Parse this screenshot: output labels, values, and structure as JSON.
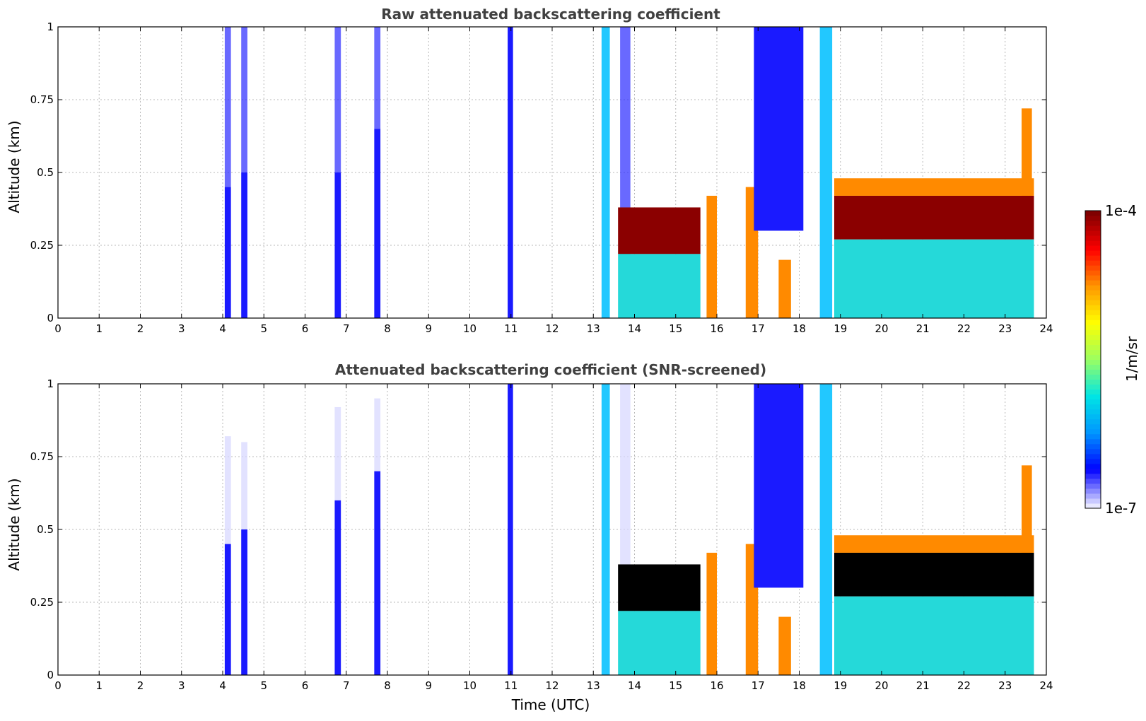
{
  "chart_data": [
    {
      "type": "heatmap",
      "title": "Raw attenuated backscattering coefficient",
      "xlabel": "",
      "ylabel": "Altitude (km)",
      "xlim": [
        0,
        24
      ],
      "ylim": [
        0,
        1
      ],
      "xticks": [
        "0",
        "1",
        "2",
        "3",
        "4",
        "5",
        "6",
        "7",
        "8",
        "9",
        "10",
        "11",
        "12",
        "13",
        "14",
        "15",
        "16",
        "17",
        "18",
        "19",
        "20",
        "21",
        "22",
        "23",
        "24"
      ],
      "yticks": [
        "0",
        "0.25",
        "0.5",
        "0.75",
        "1"
      ],
      "grid": true,
      "screened": false,
      "layers": [
        {
          "t0": 4.05,
          "t1": 4.2,
          "z0": 0,
          "z1": 0.45,
          "level": "low"
        },
        {
          "t0": 4.05,
          "t1": 4.2,
          "z0": 0.45,
          "z1": 1.0,
          "level": "sparse"
        },
        {
          "t0": 4.45,
          "t1": 4.6,
          "z0": 0,
          "z1": 0.5,
          "level": "low"
        },
        {
          "t0": 4.45,
          "t1": 4.6,
          "z0": 0.5,
          "z1": 1.0,
          "level": "sparse"
        },
        {
          "t0": 6.72,
          "t1": 6.87,
          "z0": 0,
          "z1": 0.5,
          "level": "low"
        },
        {
          "t0": 6.72,
          "t1": 6.87,
          "z0": 0.5,
          "z1": 1.0,
          "level": "sparse"
        },
        {
          "t0": 7.68,
          "t1": 7.83,
          "z0": 0,
          "z1": 0.65,
          "level": "low"
        },
        {
          "t0": 7.68,
          "t1": 7.83,
          "z0": 0.65,
          "z1": 1.0,
          "level": "sparse"
        },
        {
          "t0": 10.92,
          "t1": 11.05,
          "z0": 0,
          "z1": 1.0,
          "level": "low"
        },
        {
          "t0": 13.2,
          "t1": 13.4,
          "z0": 0,
          "z1": 1.0,
          "level": "cyan"
        },
        {
          "t0": 13.65,
          "t1": 13.9,
          "z0": 0,
          "z1": 0.35,
          "level": "mid"
        },
        {
          "t0": 13.65,
          "t1": 13.9,
          "z0": 0.35,
          "z1": 1.0,
          "level": "sparse"
        },
        {
          "t0": 13.6,
          "t1": 15.6,
          "z0": 0.22,
          "z1": 0.38,
          "level": "max"
        },
        {
          "t0": 13.6,
          "t1": 15.6,
          "z0": 0,
          "z1": 0.22,
          "level": "mid"
        },
        {
          "t0": 15.75,
          "t1": 16.0,
          "z0": 0,
          "z1": 0.42,
          "level": "high"
        },
        {
          "t0": 16.7,
          "t1": 17.0,
          "z0": 0,
          "z1": 0.45,
          "level": "high"
        },
        {
          "t0": 16.9,
          "t1": 18.1,
          "z0": 0.3,
          "z1": 1.0,
          "level": "low"
        },
        {
          "t0": 17.5,
          "t1": 17.8,
          "z0": 0,
          "z1": 0.2,
          "level": "high"
        },
        {
          "t0": 18.5,
          "t1": 18.8,
          "z0": 0,
          "z1": 1.0,
          "level": "cyan"
        },
        {
          "t0": 18.85,
          "t1": 23.7,
          "z0": 0.27,
          "z1": 0.42,
          "level": "max"
        },
        {
          "t0": 18.85,
          "t1": 23.7,
          "z0": 0.42,
          "z1": 0.48,
          "level": "high"
        },
        {
          "t0": 18.85,
          "t1": 23.7,
          "z0": 0,
          "z1": 0.27,
          "level": "mid"
        },
        {
          "t0": 23.4,
          "t1": 23.65,
          "z0": 0.42,
          "z1": 0.72,
          "level": "high"
        }
      ]
    },
    {
      "type": "heatmap",
      "title": "Attenuated backscattering coefficient (SNR-screened)",
      "xlabel": "Time (UTC)",
      "ylabel": "Altitude (km)",
      "xlim": [
        0,
        24
      ],
      "ylim": [
        0,
        1
      ],
      "xticks": [
        "0",
        "1",
        "2",
        "3",
        "4",
        "5",
        "6",
        "7",
        "8",
        "9",
        "10",
        "11",
        "12",
        "13",
        "14",
        "15",
        "16",
        "17",
        "18",
        "19",
        "20",
        "21",
        "22",
        "23",
        "24"
      ],
      "yticks": [
        "0",
        "0.25",
        "0.5",
        "0.75",
        "1"
      ],
      "grid": true,
      "screened": true,
      "layers": [
        {
          "t0": 4.05,
          "t1": 4.2,
          "z0": 0,
          "z1": 0.45,
          "level": "low"
        },
        {
          "t0": 4.05,
          "t1": 4.2,
          "z0": 0.45,
          "z1": 0.82,
          "level": "faint"
        },
        {
          "t0": 4.45,
          "t1": 4.6,
          "z0": 0,
          "z1": 0.5,
          "level": "low"
        },
        {
          "t0": 4.45,
          "t1": 4.6,
          "z0": 0.5,
          "z1": 0.8,
          "level": "faint"
        },
        {
          "t0": 6.72,
          "t1": 6.87,
          "z0": 0,
          "z1": 0.6,
          "level": "low"
        },
        {
          "t0": 6.72,
          "t1": 6.87,
          "z0": 0.6,
          "z1": 0.92,
          "level": "faint"
        },
        {
          "t0": 7.68,
          "t1": 7.83,
          "z0": 0,
          "z1": 0.7,
          "level": "low"
        },
        {
          "t0": 7.68,
          "t1": 7.83,
          "z0": 0.7,
          "z1": 0.95,
          "level": "faint"
        },
        {
          "t0": 10.92,
          "t1": 11.05,
          "z0": 0,
          "z1": 1.0,
          "level": "low"
        },
        {
          "t0": 13.2,
          "t1": 13.4,
          "z0": 0,
          "z1": 1.0,
          "level": "cyan"
        },
        {
          "t0": 13.65,
          "t1": 13.9,
          "z0": 0.38,
          "z1": 1.0,
          "level": "faint"
        },
        {
          "t0": 13.6,
          "t1": 15.6,
          "z0": 0.22,
          "z1": 0.38,
          "level": "black"
        },
        {
          "t0": 13.6,
          "t1": 15.6,
          "z0": 0,
          "z1": 0.22,
          "level": "mid"
        },
        {
          "t0": 15.75,
          "t1": 16.0,
          "z0": 0,
          "z1": 0.42,
          "level": "high"
        },
        {
          "t0": 16.7,
          "t1": 17.0,
          "z0": 0,
          "z1": 0.45,
          "level": "high"
        },
        {
          "t0": 16.9,
          "t1": 18.1,
          "z0": 0.3,
          "z1": 1.0,
          "level": "low"
        },
        {
          "t0": 17.5,
          "t1": 17.8,
          "z0": 0,
          "z1": 0.2,
          "level": "high"
        },
        {
          "t0": 18.5,
          "t1": 18.8,
          "z0": 0,
          "z1": 1.0,
          "level": "cyan"
        },
        {
          "t0": 18.85,
          "t1": 23.7,
          "z0": 0.27,
          "z1": 0.42,
          "level": "black"
        },
        {
          "t0": 18.85,
          "t1": 23.7,
          "z0": 0.42,
          "z1": 0.48,
          "level": "high"
        },
        {
          "t0": 18.85,
          "t1": 23.7,
          "z0": 0,
          "z1": 0.27,
          "level": "mid"
        },
        {
          "t0": 23.4,
          "t1": 23.65,
          "z0": 0.42,
          "z1": 0.72,
          "level": "high"
        }
      ]
    }
  ],
  "colorbar": {
    "label": "1/m/sr",
    "min_label": "1e-7",
    "max_label": "1e-4",
    "scale": "log",
    "colors": [
      "#e8e8ff",
      "#0000ff",
      "#0096ff",
      "#00e5e5",
      "#9aff62",
      "#ffff00",
      "#ff9600",
      "#ff0000",
      "#800000"
    ]
  },
  "level_colors": {
    "faint": "#d6d6ff",
    "sparse": "#2a2aff",
    "low": "#1a1aff",
    "cyan": "#22c8ff",
    "mid": "#25d9d9",
    "high": "#ff8a00",
    "max": "#8b0000",
    "black": "#000000"
  }
}
